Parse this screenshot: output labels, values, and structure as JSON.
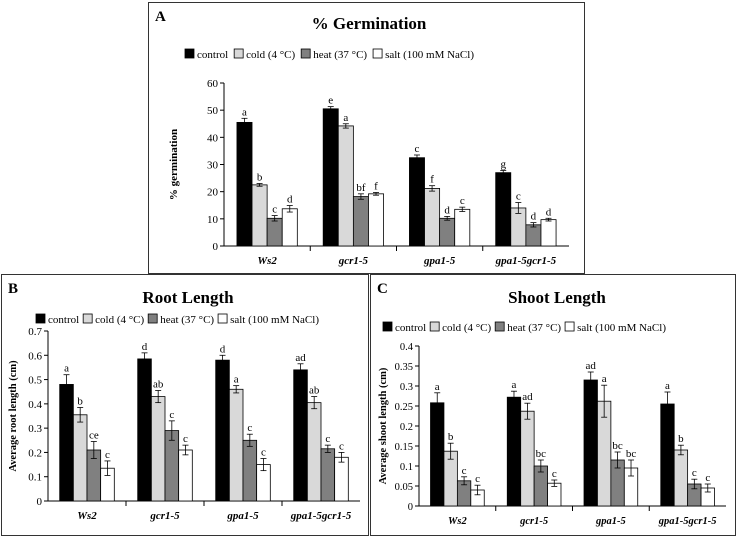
{
  "legend": [
    "control",
    "cold (4 °C)",
    "heat (37 °C)",
    "salt (100 mM NaCl)"
  ],
  "colors": {
    "control": "#000000",
    "cold": "#d9d9d9",
    "heat": "#808080",
    "salt": "#ffffff",
    "stroke": "#000000"
  },
  "chart_data": [
    {
      "panel": "A",
      "type": "bar",
      "title": "% Germination",
      "ylabel": "% germination",
      "xlabel": "",
      "ylim": [
        0,
        60
      ],
      "yticks": [
        "0",
        "10",
        "20",
        "30",
        "40",
        "50",
        "60"
      ],
      "categories": [
        "Ws2",
        "gcr1-5",
        "gpa1-5",
        "gpa1-5gcr1-5"
      ],
      "series": [
        {
          "name": "control",
          "values": [
            45.5,
            50.5,
            32.5,
            27
          ],
          "errors": [
            1.5,
            0.8,
            1.0,
            0.8
          ],
          "labels": [
            "a",
            "e",
            "c",
            "g"
          ]
        },
        {
          "name": "cold (4 °C)",
          "values": [
            22.5,
            44.2,
            21.2,
            14
          ],
          "errors": [
            0.5,
            0.8,
            1.0,
            2.0
          ],
          "labels": [
            "b",
            "a",
            "f",
            "c"
          ]
        },
        {
          "name": "heat (37 °C)",
          "values": [
            10.2,
            18.2,
            10.2,
            7.8
          ],
          "errors": [
            1.0,
            1.0,
            0.7,
            0.8
          ],
          "labels": [
            "c",
            "bf",
            "d",
            "d"
          ]
        },
        {
          "name": "salt (100 mM NaCl)",
          "values": [
            13.7,
            19.2,
            13.5,
            9.7
          ],
          "errors": [
            1.2,
            0.5,
            0.8,
            0.5
          ],
          "labels": [
            "d",
            "f",
            "c",
            "d"
          ]
        }
      ]
    },
    {
      "panel": "B",
      "type": "bar",
      "title": "Root Length",
      "ylabel": "Average root length (cm)",
      "xlabel": "",
      "ylim": [
        0,
        0.7
      ],
      "yticks": [
        "0",
        "0.1",
        "0.2",
        "0.3",
        "0.4",
        "0.5",
        "0.6",
        "0.7"
      ],
      "categories": [
        "Ws2",
        "gcr1-5",
        "gpa1-5",
        "gpa1-5gcr1-5"
      ],
      "series": [
        {
          "name": "control",
          "values": [
            0.48,
            0.585,
            0.58,
            0.54
          ],
          "errors": [
            0.04,
            0.025,
            0.02,
            0.025
          ],
          "labels": [
            "a",
            "d",
            "d",
            "ad"
          ]
        },
        {
          "name": "cold (4 °C)",
          "values": [
            0.355,
            0.43,
            0.46,
            0.405
          ],
          "errors": [
            0.03,
            0.025,
            0.015,
            0.025
          ],
          "labels": [
            "b",
            "ab",
            "a",
            "ab"
          ]
        },
        {
          "name": "heat (37 °C)",
          "values": [
            0.21,
            0.29,
            0.25,
            0.215
          ],
          "errors": [
            0.035,
            0.04,
            0.025,
            0.015
          ],
          "labels": [
            "ce",
            "c",
            "c",
            "c"
          ]
        },
        {
          "name": "salt (100 mM NaCl)",
          "values": [
            0.135,
            0.21,
            0.15,
            0.18
          ],
          "errors": [
            0.03,
            0.02,
            0.025,
            0.02
          ],
          "labels": [
            "c",
            "c",
            "c",
            "c"
          ]
        }
      ]
    },
    {
      "panel": "C",
      "type": "bar",
      "title": "Shoot Length",
      "ylabel": "Average shoot length (cm)",
      "xlabel": "",
      "ylim": [
        0,
        0.4
      ],
      "yticks": [
        "0",
        "0.05",
        "0.1",
        "0.15",
        "0.2",
        "0.25",
        "0.3",
        "0.35",
        "0.4"
      ],
      "categories": [
        "Ws2",
        "gcr1-5",
        "gpa1-5",
        "gpa1-5gcr1-5"
      ],
      "series": [
        {
          "name": "control",
          "values": [
            0.258,
            0.272,
            0.315,
            0.255
          ],
          "errors": [
            0.025,
            0.015,
            0.02,
            0.03
          ],
          "labels": [
            "a",
            "a",
            "ad",
            "a"
          ]
        },
        {
          "name": "cold (4 °C)",
          "values": [
            0.137,
            0.237,
            0.262,
            0.14
          ],
          "errors": [
            0.02,
            0.02,
            0.04,
            0.012
          ],
          "labels": [
            "b",
            "ad",
            "a",
            "b"
          ]
        },
        {
          "name": "heat (37 °C)",
          "values": [
            0.063,
            0.1,
            0.115,
            0.055
          ],
          "errors": [
            0.01,
            0.015,
            0.02,
            0.012
          ],
          "labels": [
            "c",
            "bc",
            "bc",
            "c"
          ]
        },
        {
          "name": "salt (100 mM NaCl)",
          "values": [
            0.04,
            0.057,
            0.095,
            0.045
          ],
          "errors": [
            0.012,
            0.008,
            0.02,
            0.01
          ],
          "labels": [
            "c",
            "c",
            "bc",
            "c"
          ]
        }
      ]
    }
  ]
}
